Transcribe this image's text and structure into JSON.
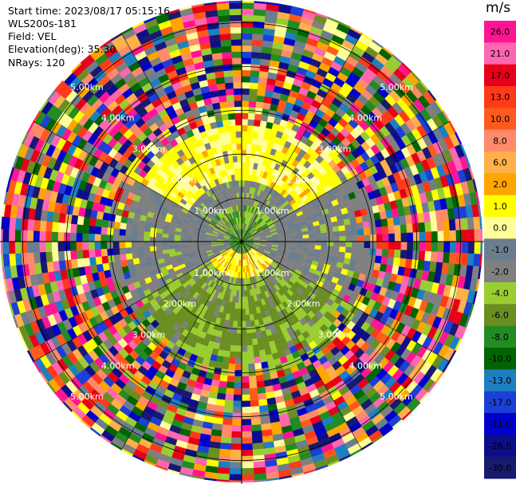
{
  "header": {
    "start_time": "Start time: 2023/08/17 05:15:16",
    "instrument": "WLS200s-181",
    "field": "Field: VEL",
    "elevation": "Elevation(deg): 35.30",
    "nrays": "NRays: 120"
  },
  "colorbar": {
    "unit": "m/s",
    "levels": [
      "26.0",
      "21.0",
      "17.0",
      "13.0",
      "10.0",
      "8.0",
      "6.0",
      "2.0",
      "1.0",
      "0.0",
      "-1.0",
      "-2.0",
      "-4.0",
      "-6.0",
      "-8.0",
      "-10.0",
      "-13.0",
      "-17.0",
      "-21.0",
      "-26.0",
      "-30.0"
    ],
    "colors": [
      "#ff1493",
      "#ff66b2",
      "#e8001a",
      "#ff3a1a",
      "#ff5a1e",
      "#ff8a6a",
      "#ffb04a",
      "#ffa500",
      "#ffff00",
      "#ffff99",
      "#6b7e8f",
      "#808080",
      "#9acd32",
      "#6b8e23",
      "#228b22",
      "#006400",
      "#1e7fc0",
      "#1c3fd6",
      "#0000cd",
      "#0d0d8c",
      "#191970"
    ]
  },
  "chart_data": {
    "type": "heatmap",
    "title": "",
    "field": "VEL",
    "nrays": 120,
    "range_labels": [
      "1.00km",
      "2.00km",
      "3.00km",
      "4.00km",
      "5.00km"
    ],
    "range_km_max": 5.5,
    "units": "m/s",
    "pattern": {
      "near_center": "green / gray mixture (-2 to 0 m/s) with small yellow core",
      "north_mid": "yellow (1 to 2 m/s)",
      "south_mid": "olive green (-2 to -4 m/s)",
      "east_west_mid": "gray (0 m/s)",
      "outer_ring": "noise: random mix of all colors"
    }
  }
}
